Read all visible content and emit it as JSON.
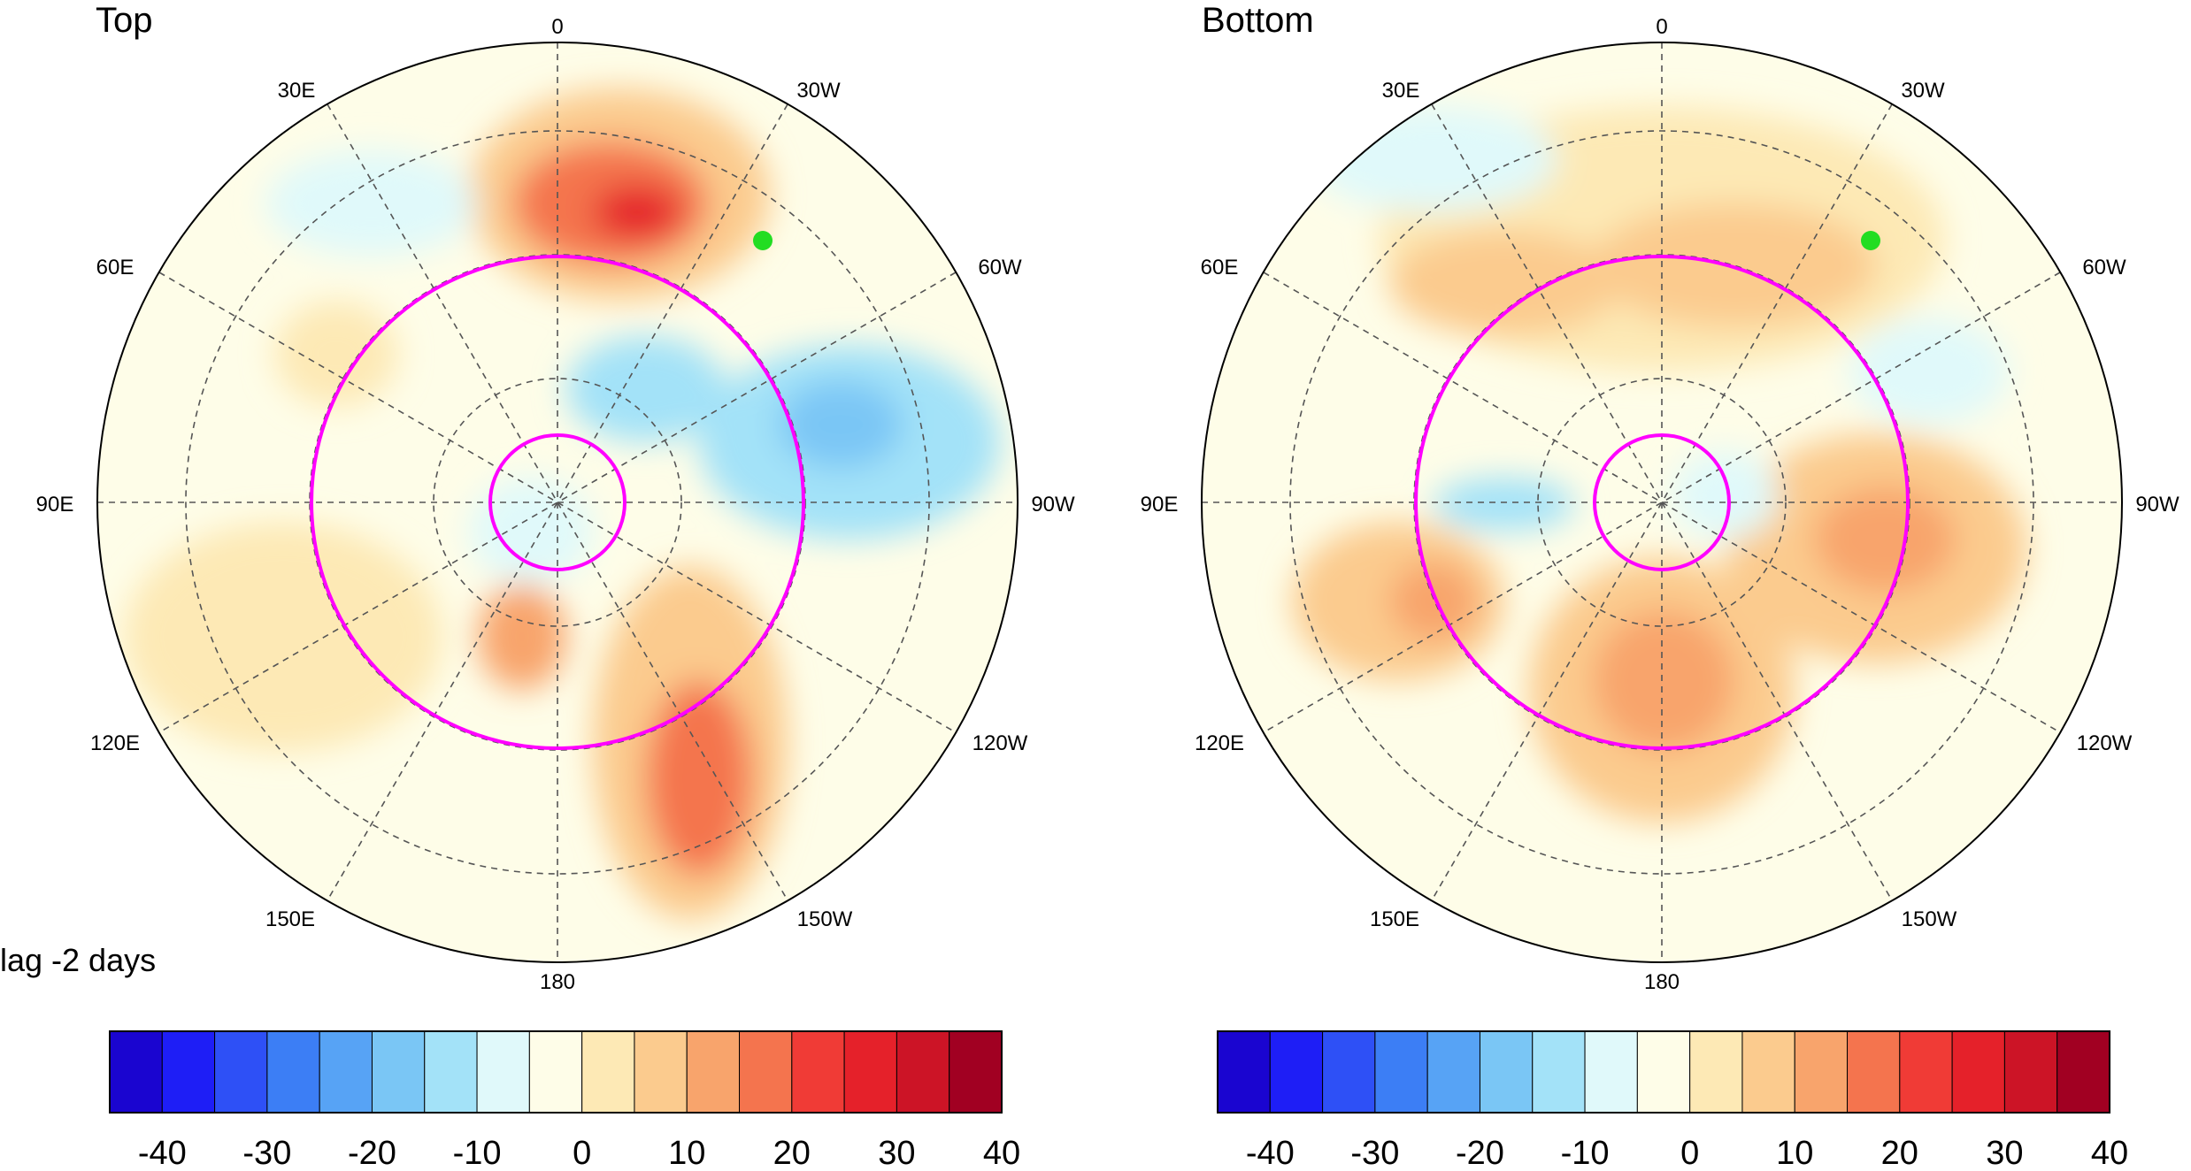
{
  "panels": [
    {
      "id": "top",
      "title": "Top",
      "marker_color": "#22dd22"
    },
    {
      "id": "bottom",
      "title": "Bottom",
      "marker_color": "#22dd22"
    }
  ],
  "lag_label": "lag -2 days",
  "longitude_labels": [
    "0",
    "30W",
    "60W",
    "90W",
    "120W",
    "150W",
    "180",
    "150E",
    "120E",
    "90E",
    "60E",
    "30E"
  ],
  "highlight_circle_color": "#ff00ff",
  "colorbar": {
    "ticks": [
      "-40",
      "-30",
      "-20",
      "-10",
      "0",
      "10",
      "20",
      "30",
      "40"
    ],
    "colors": [
      "#1a05d0",
      "#1e1ef6",
      "#2e50f6",
      "#3c7ef5",
      "#57a3f5",
      "#7ac6f5",
      "#a3e2f8",
      "#e0f9fa",
      "#fefde8",
      "#fde9b5",
      "#fbcb8e",
      "#f8a46c",
      "#f4744e",
      "#f03b36",
      "#e5212a",
      "#cc1426",
      "#a10022"
    ]
  }
}
